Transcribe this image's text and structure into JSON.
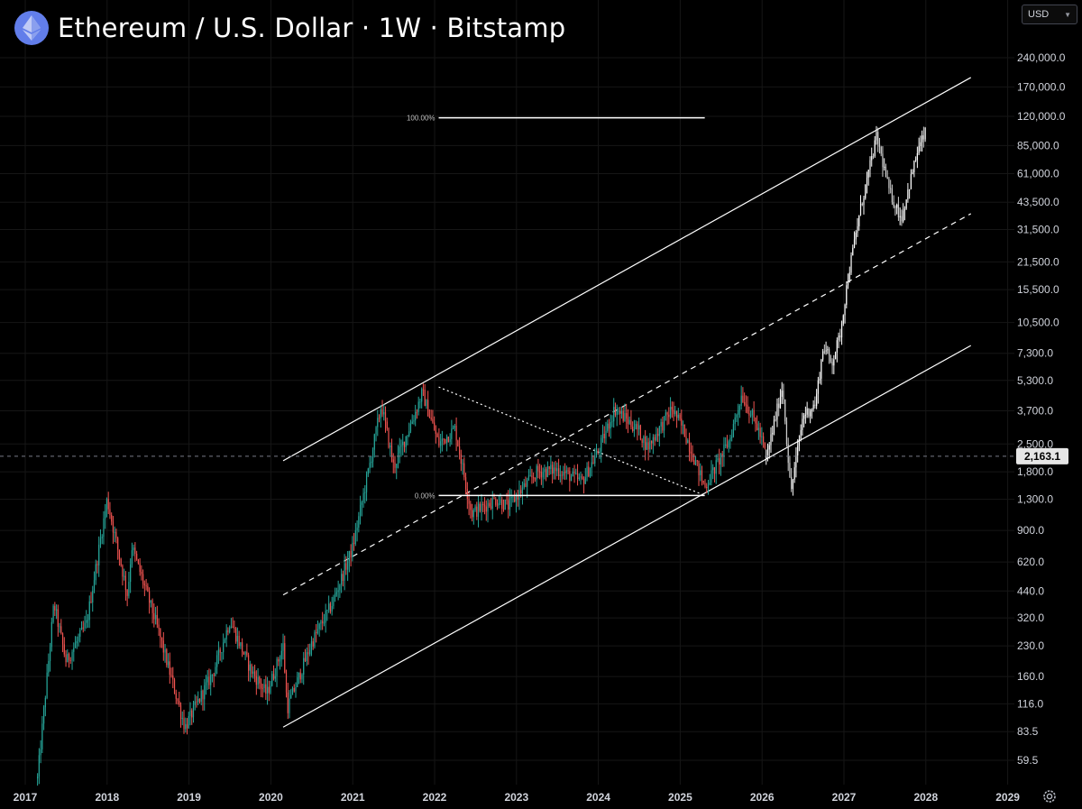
{
  "header": {
    "title": "Ethereum / U.S. Dollar · 1W · Bitstamp",
    "coin_icon": "ethereum-icon"
  },
  "currency_selector": {
    "value": "USD",
    "icon": "chevron-down-icon"
  },
  "settings": {
    "icon": "gear-icon"
  },
  "colors": {
    "background": "#000000",
    "up": "#26a69a",
    "down": "#ef5350",
    "projection": "#ffffff",
    "lines": "#ffffff",
    "grid": "#161616"
  },
  "chart_data": {
    "type": "candlestick",
    "title": "Ethereum / U.S. Dollar · 1W · Bitstamp",
    "x_axis": {
      "labels": [
        "2017",
        "2018",
        "2019",
        "2020",
        "2021",
        "2022",
        "2023",
        "2024",
        "2025",
        "2026",
        "2027",
        "2028",
        "2029"
      ],
      "range": [
        2017.0,
        2029.2
      ]
    },
    "y_axis": {
      "scale": "log",
      "ticks": [
        {
          "value": 59.5,
          "label": "59.5"
        },
        {
          "value": 83.5,
          "label": "83.5"
        },
        {
          "value": 116,
          "label": "116.0"
        },
        {
          "value": 160,
          "label": "160.0"
        },
        {
          "value": 230,
          "label": "230.0"
        },
        {
          "value": 320,
          "label": "320.0"
        },
        {
          "value": 440,
          "label": "440.0"
        },
        {
          "value": 620,
          "label": "620.0"
        },
        {
          "value": 900,
          "label": "900.0"
        },
        {
          "value": 1300,
          "label": "1,300.0"
        },
        {
          "value": 1800,
          "label": "1,800.0"
        },
        {
          "value": 2500,
          "label": "2,500.0"
        },
        {
          "value": 3700,
          "label": "3,700.0"
        },
        {
          "value": 5300,
          "label": "5,300.0"
        },
        {
          "value": 7300,
          "label": "7,300.0"
        },
        {
          "value": 10500,
          "label": "10,500.0"
        },
        {
          "value": 15500,
          "label": "15,500.0"
        },
        {
          "value": 21500,
          "label": "21,500.0"
        },
        {
          "value": 31500,
          "label": "31,500.0"
        },
        {
          "value": 43500,
          "label": "43,500.0"
        },
        {
          "value": 61000,
          "label": "61,000.0"
        },
        {
          "value": 85000,
          "label": "85,000.0"
        },
        {
          "value": 120000,
          "label": "120,000.0"
        },
        {
          "value": 170000,
          "label": "170,000.0"
        },
        {
          "value": 240000,
          "label": "240,000.0"
        }
      ],
      "range": [
        44,
        320000
      ]
    },
    "current_price": {
      "value": 2163.1,
      "label": "2,163.1"
    },
    "price_path": [
      [
        2017.15,
        48
      ],
      [
        2017.35,
        380
      ],
      [
        2017.5,
        190
      ],
      [
        2017.75,
        300
      ],
      [
        2018.0,
        1300
      ],
      [
        2018.25,
        420
      ],
      [
        2018.3,
        750
      ],
      [
        2018.6,
        300
      ],
      [
        2018.95,
        88
      ],
      [
        2019.3,
        170
      ],
      [
        2019.5,
        310
      ],
      [
        2019.75,
        175
      ],
      [
        2019.95,
        130
      ],
      [
        2020.15,
        230
      ],
      [
        2020.2,
        110
      ],
      [
        2020.5,
        240
      ],
      [
        2020.75,
        380
      ],
      [
        2021.0,
        740
      ],
      [
        2021.2,
        1900
      ],
      [
        2021.35,
        4000
      ],
      [
        2021.5,
        1900
      ],
      [
        2021.75,
        3500
      ],
      [
        2021.85,
        4600
      ],
      [
        2022.05,
        2500
      ],
      [
        2022.25,
        3000
      ],
      [
        2022.45,
        1100
      ],
      [
        2022.75,
        1300
      ],
      [
        2022.9,
        1200
      ],
      [
        2023.25,
        1800
      ],
      [
        2023.5,
        1850
      ],
      [
        2023.8,
        1600
      ],
      [
        2024.0,
        2300
      ],
      [
        2024.2,
        3800
      ],
      [
        2024.5,
        2900
      ],
      [
        2024.6,
        2400
      ],
      [
        2024.9,
        3800
      ],
      [
        2025.05,
        2900
      ],
      [
        2025.3,
        1500
      ],
      [
        2025.6,
        2600
      ],
      [
        2025.75,
        4500
      ],
      [
        2025.95,
        3000
      ],
      [
        2026.05,
        2200
      ]
    ],
    "projection_path": [
      [
        2026.05,
        2100
      ],
      [
        2026.25,
        5000
      ],
      [
        2026.35,
        1400
      ],
      [
        2026.5,
        3500
      ],
      [
        2026.65,
        4000
      ],
      [
        2026.75,
        8000
      ],
      [
        2026.85,
        6500
      ],
      [
        2026.95,
        9000
      ],
      [
        2027.05,
        18000
      ],
      [
        2027.2,
        40000
      ],
      [
        2027.4,
        95000
      ],
      [
        2027.55,
        50000
      ],
      [
        2027.7,
        36000
      ],
      [
        2027.9,
        80000
      ],
      [
        2028.0,
        100000
      ]
    ],
    "channel": {
      "upper": {
        "start": [
          2020.15,
          2050
        ],
        "end": [
          2028.55,
          190000
        ]
      },
      "middle": {
        "start": [
          2020.15,
          420
        ],
        "end": [
          2028.55,
          38000
        ]
      },
      "lower": {
        "start": [
          2020.15,
          88
        ],
        "end": [
          2028.55,
          8000
        ]
      }
    },
    "fibonacci": {
      "level_100": {
        "label": "100.00%",
        "value": 118000,
        "x_range": [
          2022.05,
          2025.3
        ]
      },
      "level_0": {
        "label": "0.00%",
        "value": 1360,
        "x_range": [
          2022.05,
          2025.3
        ]
      }
    },
    "trend_line_dotted": {
      "start": [
        2022.05,
        4900
      ],
      "end": [
        2025.3,
        1360
      ]
    }
  }
}
